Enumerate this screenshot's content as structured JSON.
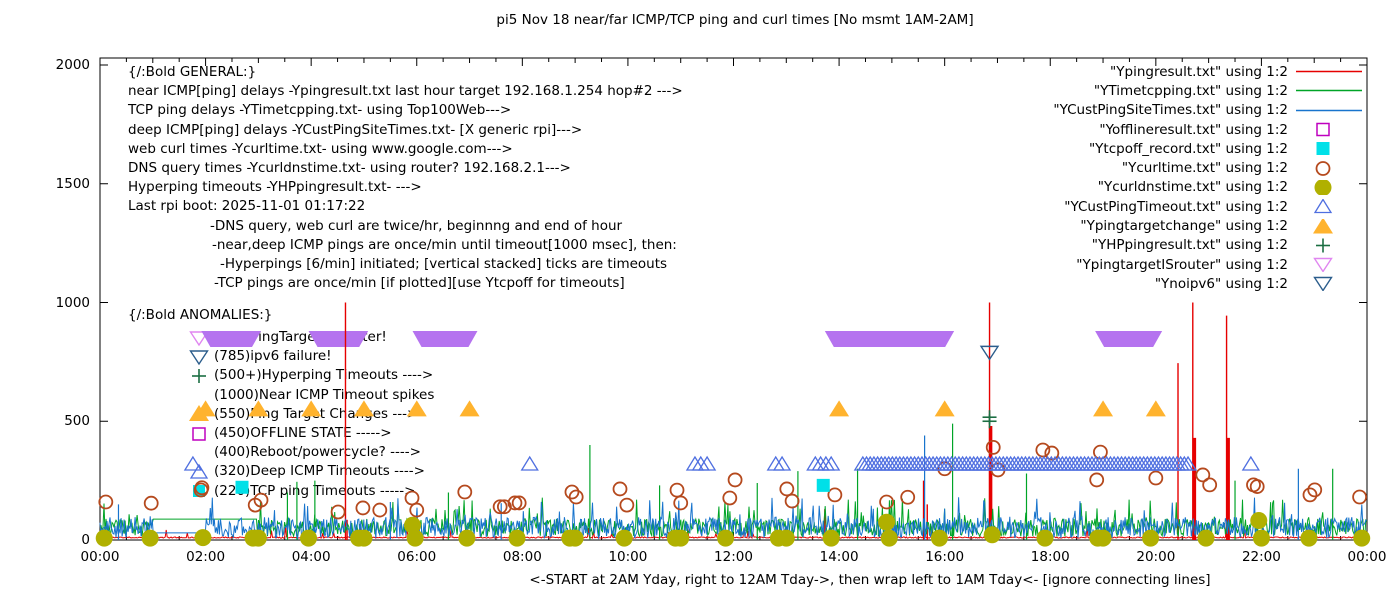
{
  "title": "pi5 Nov 18  near/far ICMP/TCP ping and curl times [No msmt 1AM-2AM]",
  "plot": {
    "ylabel": "msec",
    "y_ticks": [
      "0",
      "500",
      "1000",
      "1500",
      "2000"
    ],
    "x_ticks": [
      "00:00",
      "02:00",
      "04:00",
      "06:00",
      "08:00",
      "10:00",
      "12:00",
      "14:00",
      "16:00",
      "18:00",
      "20:00",
      "22:00",
      "00:00"
    ],
    "caption": "<-START at 2AM Yday, right to 12AM Tday->, then wrap left to 1AM Tday<- [ignore connecting lines]"
  },
  "legend": [
    {
      "label": "\"Ypingresult.txt\" using 1:2",
      "marker": "line",
      "color": "#e60000"
    },
    {
      "label": "\"YTimetcpping.txt\" using 1:2",
      "marker": "line",
      "color": "#00a427"
    },
    {
      "label": "\"YCustPingSiteTimes.txt\" using 1:2",
      "marker": "line",
      "color": "#1874cd"
    },
    {
      "label": "\"Yofflineresult.txt\" using 1:2",
      "marker": "open-square",
      "color": "#bf00bf"
    },
    {
      "label": "\"Ytcpoff_record.txt\" using 1:2",
      "marker": "filled-square",
      "color": "#00e0e8"
    },
    {
      "label": "\"Ycurltime.txt\" using 1:2",
      "marker": "open-circle",
      "color": "#b5491d"
    },
    {
      "label": "\"Ycurldnstime.txt\" using 1:2",
      "marker": "filled-circle",
      "color": "#b0b000"
    },
    {
      "label": "\"YCustPingTimeout.txt\" using 1:2",
      "marker": "open-triangle",
      "color": "#4f6fe0"
    },
    {
      "label": "\"Ypingtargetchange\" using 1:2",
      "marker": "filled-triangle",
      "color": "#ffb32e"
    },
    {
      "label": "\"YHPpingresult.txt\" using 1:2",
      "marker": "plus",
      "color": "#1b6e42"
    },
    {
      "label": "\"YpingtargetISrouter\" using 1:2",
      "marker": "open-down-triangle",
      "color": "#e086f0"
    },
    {
      "label": "\"Ynoipv6\" using 1:2",
      "marker": "open-down-triangle",
      "color": "#2b5d8c"
    }
  ],
  "annotations": {
    "general": [
      {
        "text": "{/:Bold GENERAL:}",
        "indent": 0
      },
      {
        "text": "near ICMP[ping] delays -Ypingresult.txt last hour target 192.168.1.254 hop#2 --->",
        "indent": 0
      },
      {
        "text": "TCP ping delays -YTimetcpping.txt- using Top100Web--->",
        "indent": 0
      },
      {
        "text": "deep ICMP[ping] delays -YCustPingSiteTimes.txt- [X generic rpi]--->",
        "indent": 0
      },
      {
        "text": "web curl times -Ycurltime.txt- using www.google.com--->",
        "indent": 0
      },
      {
        "text": "DNS query times -Ycurldnstime.txt- using router? 192.168.2.1--->",
        "indent": 0
      },
      {
        "text": "Hyperping timeouts -YHPpingresult.txt- --->",
        "indent": 0
      },
      {
        "text": "Last rpi boot: 2025-11-01 01:17:22",
        "indent": 0
      },
      {
        "text": "-DNS query, web curl are twice/hr, beginnng and end of hour",
        "indent": 82
      },
      {
        "text": "-near,deep ICMP pings are once/min until timeout[1000 msec], then:",
        "indent": 84
      },
      {
        "text": "-Hyperpings [6/min] initiated; [vertical stacked] ticks are timeouts",
        "indent": 92
      },
      {
        "text": "-TCP pings are once/min [if plotted][use Ytcpoff for timeouts]",
        "indent": 86
      }
    ],
    "anomalies_header": "{/:Bold ANOMALIES:}",
    "anomalies": [
      {
        "marker": "open-down-triangle",
        "color": "#e086f0",
        "text": "(850)PingTarget is router!"
      },
      {
        "marker": "open-down-triangle",
        "color": "#2b5d8c",
        "text": "(785)ipv6 failure!"
      },
      {
        "marker": "plus",
        "color": "#1b6e42",
        "text": "(500+)Hyperping Timeouts ---->"
      },
      {
        "marker": "none",
        "color": "#000000",
        "text": "(1000)Near ICMP Timeout spikes"
      },
      {
        "marker": "filled-triangle",
        "color": "#ffb32e",
        "text": "(550)Ping Target Changes --->"
      },
      {
        "marker": "open-square",
        "color": "#bf00bf",
        "text": "(450)OFFLINE STATE ----->"
      },
      {
        "marker": "none",
        "color": "#000000",
        "text": "(400)Reboot/powercycle? ---->"
      },
      {
        "marker": "open-triangle",
        "color": "#4f6fe0",
        "text": "(320)Deep ICMP Timeouts ---->"
      },
      {
        "marker": "square-circle",
        "color": "#00e0e8",
        "text": "(220)TCP ping Timeouts ----->"
      }
    ]
  },
  "chart_data": {
    "type": "line",
    "title": "pi5 Nov 18  near/far ICMP/TCP ping and curl times [No msmt 1AM-2AM]",
    "xlabel": "<-START at 2AM Yday, right to 12AM Tday->, then wrap left to 1AM Tday<- [ignore connecting lines]",
    "ylabel": "msec",
    "xlim": [
      0,
      24
    ],
    "ylim": [
      0,
      2000
    ],
    "x_tick_hours": [
      0,
      2,
      4,
      6,
      8,
      10,
      12,
      14,
      16,
      18,
      20,
      22,
      24
    ],
    "series": [
      {
        "name": "Ypingresult.txt",
        "style": "line",
        "color": "#e60000",
        "noise": {
          "base": 8,
          "amp": 5,
          "seed": 11
        },
        "spikes": [
          [
            4.65,
            1000,
            1.4
          ],
          [
            4.68,
            85,
            1.4
          ],
          [
            13.73,
            130,
            1.4
          ],
          [
            15.6,
            250,
            1.4
          ],
          [
            15.67,
            150,
            1.4
          ],
          [
            16.85,
            1000,
            1.4
          ],
          [
            16.87,
            480,
            3.5
          ],
          [
            20.42,
            745,
            1.4
          ],
          [
            20.7,
            1000,
            1.4
          ],
          [
            20.73,
            430,
            3.5
          ],
          [
            21.34,
            945,
            1.4
          ],
          [
            21.37,
            430,
            3.5
          ]
        ]
      },
      {
        "name": "YTimetcpping.txt",
        "style": "line",
        "color": "#00a427",
        "noise": {
          "base": 15,
          "amp": 75,
          "seed": 23
        },
        "flat": [
          1.0,
          2.95,
          88
        ],
        "spikes": [
          [
            3.55,
            200,
            1.2
          ],
          [
            3.73,
            245,
            1.2
          ],
          [
            4.07,
            250,
            1.2
          ],
          [
            6.6,
            200,
            1.2
          ],
          [
            9.28,
            400,
            1.2
          ],
          [
            10.6,
            230,
            1.2
          ],
          [
            12.45,
            240,
            1.2
          ],
          [
            13.22,
            290,
            1.2
          ],
          [
            14.35,
            300,
            1.2
          ],
          [
            16.15,
            490,
            1.2
          ],
          [
            17.55,
            280,
            1.2
          ],
          [
            21.5,
            250,
            1.2
          ],
          [
            23.35,
            300,
            1.2
          ]
        ]
      },
      {
        "name": "YCustPingSiteTimes.txt",
        "style": "line",
        "color": "#1874cd",
        "noise": {
          "base": 8,
          "amp": 88,
          "seed": 57
        },
        "flat": [
          1.0,
          2.0,
          30
        ],
        "spikes": [
          [
            0.35,
            150,
            1.2
          ],
          [
            5.5,
            160,
            1.2
          ],
          [
            7.6,
            155,
            1.2
          ],
          [
            15.62,
            440,
            1.2
          ],
          [
            22.7,
            300,
            1.2
          ]
        ]
      },
      {
        "name": "Yofflineresult.txt",
        "style": "open-square",
        "color": "#bf00bf",
        "points": []
      },
      {
        "name": "Ytcpoff_record.txt",
        "style": "filled-square",
        "color": "#00e0e8",
        "points": [
          [
            2.69,
            222
          ],
          [
            13.7,
            230
          ]
        ]
      },
      {
        "name": "Ycurltime.txt",
        "style": "open-circle",
        "color": "#b5491d",
        "points": [
          [
            0.11,
            160
          ],
          [
            0.97,
            155
          ],
          [
            1.93,
            220
          ],
          [
            2.94,
            147
          ],
          [
            3.05,
            168
          ],
          [
            4.51,
            118
          ],
          [
            4.98,
            135
          ],
          [
            5.3,
            126
          ],
          [
            5.91,
            177
          ],
          [
            6.0,
            126
          ],
          [
            6.91,
            202
          ],
          [
            7.58,
            140
          ],
          [
            7.66,
            140
          ],
          [
            7.86,
            156
          ],
          [
            7.94,
            156
          ],
          [
            8.94,
            202
          ],
          [
            9.02,
            181
          ],
          [
            9.85,
            215
          ],
          [
            9.98,
            147
          ],
          [
            10.93,
            210
          ],
          [
            11.0,
            156
          ],
          [
            11.93,
            177
          ],
          [
            12.03,
            253
          ],
          [
            13.01,
            215
          ],
          [
            13.11,
            164
          ],
          [
            13.92,
            190
          ],
          [
            14.9,
            160
          ],
          [
            15.3,
            180
          ],
          [
            16.0,
            300
          ],
          [
            16.92,
            390
          ],
          [
            17.01,
            295
          ],
          [
            17.86,
            379
          ],
          [
            18.03,
            366
          ],
          [
            18.88,
            253
          ],
          [
            18.95,
            370
          ],
          [
            20.0,
            261
          ],
          [
            20.89,
            274
          ],
          [
            21.02,
            232
          ],
          [
            21.85,
            232
          ],
          [
            21.92,
            225
          ],
          [
            22.92,
            190
          ],
          [
            23.01,
            211
          ],
          [
            23.86,
            181
          ]
        ]
      },
      {
        "name": "Ycurldnstime.txt",
        "style": "filled-circle",
        "color": "#b0b000",
        "points": [
          [
            0.08,
            8
          ],
          [
            0.95,
            8
          ],
          [
            1.95,
            10
          ],
          [
            2.9,
            8
          ],
          [
            3.0,
            8
          ],
          [
            3.95,
            8
          ],
          [
            4.9,
            8
          ],
          [
            5.0,
            8
          ],
          [
            5.92,
            62
          ],
          [
            5.97,
            8
          ],
          [
            6.95,
            8
          ],
          [
            7.9,
            8
          ],
          [
            8.9,
            8
          ],
          [
            9.0,
            8
          ],
          [
            9.93,
            8
          ],
          [
            10.9,
            8
          ],
          [
            11.0,
            8
          ],
          [
            11.85,
            8
          ],
          [
            12.85,
            8
          ],
          [
            13.0,
            8
          ],
          [
            13.85,
            8
          ],
          [
            14.9,
            75
          ],
          [
            14.95,
            8
          ],
          [
            15.9,
            8
          ],
          [
            16.9,
            22
          ],
          [
            17.9,
            8
          ],
          [
            18.9,
            8
          ],
          [
            19.0,
            8
          ],
          [
            19.9,
            8
          ],
          [
            20.95,
            8
          ],
          [
            21.95,
            82
          ],
          [
            22.0,
            8
          ],
          [
            22.9,
            8
          ],
          [
            23.9,
            8
          ]
        ]
      },
      {
        "name": "YCustPingTimeout.txt",
        "style": "open-triangle",
        "color": "#4f6fe0",
        "points": [
          [
            1.76,
            320
          ],
          [
            8.14,
            320
          ],
          [
            11.27,
            320
          ],
          [
            11.38,
            320
          ],
          [
            11.5,
            320
          ],
          [
            12.8,
            320
          ],
          [
            12.92,
            320
          ],
          [
            13.55,
            320
          ],
          [
            13.65,
            320
          ],
          [
            13.75,
            320
          ],
          [
            13.85,
            320
          ],
          [
            21.8,
            320
          ]
        ],
        "dense_range": {
          "from": 14.45,
          "to": 20.65,
          "step": 0.07,
          "msec": 320
        }
      },
      {
        "name": "Ypingtargetchange",
        "style": "filled-triangle",
        "color": "#ffb32e",
        "points": [
          [
            2,
            550
          ],
          [
            3,
            550
          ],
          [
            4,
            550
          ],
          [
            5,
            550
          ],
          [
            6,
            550
          ],
          [
            7,
            550
          ],
          [
            14,
            550
          ],
          [
            16,
            550
          ],
          [
            19,
            550
          ],
          [
            20,
            550
          ]
        ]
      },
      {
        "name": "YHPpingresult.txt",
        "style": "plus",
        "color": "#1b6e42",
        "points": [
          [
            16.85,
            500
          ],
          [
            16.85,
            517
          ]
        ]
      },
      {
        "name": "YpingtargetISrouter",
        "style": "bar-down-triangles",
        "color": "#b573ef",
        "msec": 850,
        "bars": [
          [
            1.92,
            3.05
          ],
          [
            3.95,
            5.08
          ],
          [
            5.92,
            7.15
          ],
          [
            13.73,
            16.18
          ],
          [
            18.85,
            20.12
          ]
        ]
      },
      {
        "name": "Ynoipv6",
        "style": "open-down-triangle",
        "color": "#2b5d8c",
        "points": [
          [
            16.85,
            790
          ]
        ]
      }
    ]
  }
}
